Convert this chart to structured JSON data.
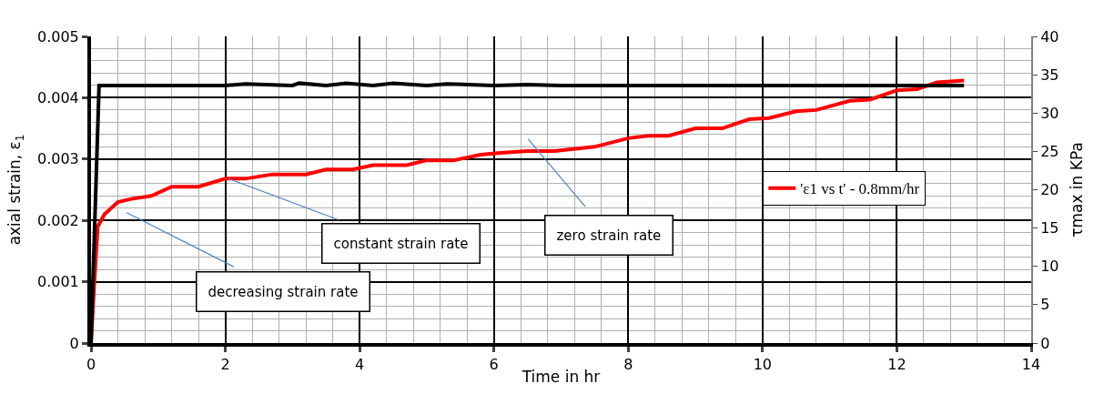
{
  "chart_data": {
    "type": "line",
    "xlabel": "Time in hr",
    "ylabel": "axial strain, ε$_{1}$",
    "y2label": "τmax in KPa",
    "xlim": [
      0,
      14
    ],
    "xticks": [
      0,
      2,
      4,
      6,
      8,
      10,
      12,
      14
    ],
    "ylim": [
      0,
      0.005
    ],
    "yticks": [
      0,
      0.001,
      0.002,
      0.003,
      0.004,
      0.005
    ],
    "y2lim": [
      0,
      40
    ],
    "y2ticks": [
      0,
      5,
      10,
      15,
      20,
      25,
      30,
      35,
      40
    ],
    "grid": true,
    "legend": "right",
    "marker": "none",
    "line_style": "solid",
    "series": [
      {
        "name": "'ε1 vs t' - 0.8mm/hr",
        "color": "#ff0000",
        "x": [
          0,
          0.05,
          0.1,
          0.2,
          0.4,
          0.6,
          0.9,
          1.2,
          1.6,
          2,
          2.3,
          2.7,
          3.2,
          3.5,
          3.9,
          4.2,
          4.7,
          5,
          5.4,
          5.8,
          6.1,
          6.5,
          6.9,
          7.5,
          8,
          8.3,
          8.6,
          9,
          9.4,
          9.8,
          10.1,
          10.5,
          10.8,
          11.3,
          11.6,
          12,
          12.3,
          12.6,
          13
        ],
        "values": [
          0,
          0.001,
          0.0019,
          0.0021,
          0.0023,
          0.00235,
          0.0024,
          0.00255,
          0.00255,
          0.00268,
          0.00268,
          0.00275,
          0.00275,
          0.00283,
          0.00283,
          0.0029,
          0.0029,
          0.00298,
          0.00298,
          0.00307,
          0.0031,
          0.00313,
          0.00313,
          0.0032,
          0.00334,
          0.00338,
          0.00338,
          0.0035,
          0.0035,
          0.00365,
          0.00367,
          0.00378,
          0.0038,
          0.00395,
          0.00397,
          0.00412,
          0.00414,
          0.00425,
          0.00428
        ]
      },
      {
        "color": "#000000",
        "axis": "y2",
        "x": [
          0,
          0.12,
          1,
          2,
          2.3,
          3,
          3.1,
          3.5,
          3.8,
          4.2,
          4.5,
          5,
          5.3,
          6,
          6.5,
          7,
          8,
          9,
          10,
          11,
          12,
          13
        ],
        "values": [
          0,
          33.6,
          33.6,
          33.6,
          33.8,
          33.6,
          33.9,
          33.6,
          33.9,
          33.6,
          33.9,
          33.6,
          33.8,
          33.6,
          33.7,
          33.6,
          33.6,
          33.6,
          33.6,
          33.6,
          33.6,
          33.6
        ]
      }
    ],
    "annotations": [
      "decreasing strain rate",
      {
        "text": "constant strain rate",
        "x": 2.05,
        "y": 0.00268
      },
      "zero strain rate"
    ]
  }
}
